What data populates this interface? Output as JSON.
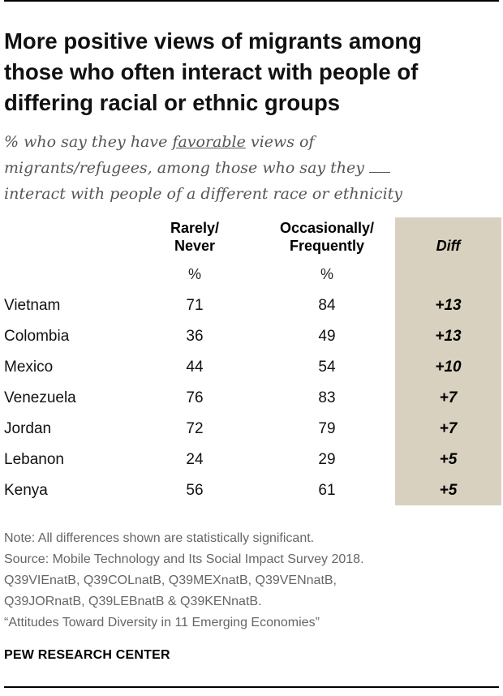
{
  "header": {
    "title_lines": [
      "More positive views of migrants among",
      "those who often interact with people of",
      "differing racial or ethnic groups"
    ],
    "subtitle": {
      "pre": "% who say they have ",
      "underlined": "favorable",
      "post_line1": " views of",
      "line2": "migrants/refugees, among those who say they",
      "line3": "interact with people of a different race or ethnicity"
    }
  },
  "chart_data": {
    "type": "table",
    "columns": [
      {
        "label_lines": [
          "Rarely/",
          "Never"
        ],
        "unit": "%"
      },
      {
        "label_lines": [
          "Occasionally/",
          "Frequently"
        ],
        "unit": "%"
      },
      {
        "label": "Diff"
      }
    ],
    "rows": [
      {
        "country": "Vietnam",
        "rarely_never": "71",
        "occasionally_frequently": "84",
        "diff": "+13"
      },
      {
        "country": "Colombia",
        "rarely_never": "36",
        "occasionally_frequently": "49",
        "diff": "+13"
      },
      {
        "country": "Mexico",
        "rarely_never": "44",
        "occasionally_frequently": "54",
        "diff": "+10"
      },
      {
        "country": "Venezuela",
        "rarely_never": "76",
        "occasionally_frequently": "83",
        "diff": "+7"
      },
      {
        "country": "Jordan",
        "rarely_never": "72",
        "occasionally_frequently": "79",
        "diff": "+7"
      },
      {
        "country": "Lebanon",
        "rarely_never": "24",
        "occasionally_frequently": "29",
        "diff": "+5"
      },
      {
        "country": "Kenya",
        "rarely_never": "56",
        "occasionally_frequently": "61",
        "diff": "+5"
      }
    ],
    "diff_column_color": "#d8d1bf"
  },
  "footer": {
    "note": "Note: All differences shown are statistically significant.",
    "source_lines": [
      "Source: Mobile Technology and Its Social Impact Survey 2018.",
      "Q39VIEnatB, Q39COLnatB, Q39MEXnatB, Q39VENnatB,",
      "Q39JORnatB, Q39LEBnatB & Q39KENnatB.",
      "“Attitudes Toward Diversity in 11 Emerging Economies”"
    ],
    "brand": "PEW RESEARCH CENTER"
  }
}
